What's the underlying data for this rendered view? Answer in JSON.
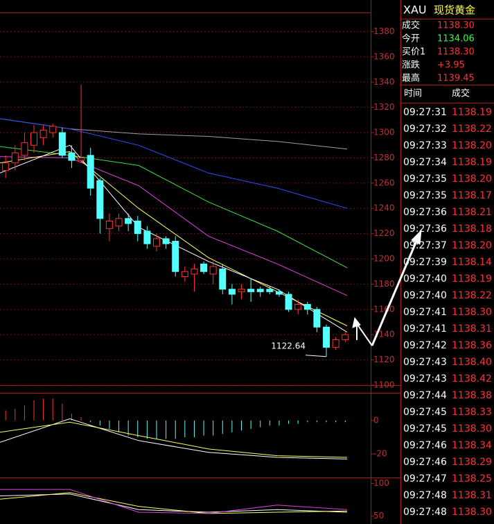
{
  "chart_data": [
    {
      "type": "candlestick",
      "xlim": [
        -0.6,
        38.7
      ],
      "ylim": [
        1100,
        1405
      ],
      "yticks": [
        1100,
        1120,
        1140,
        1160,
        1180,
        1200,
        1220,
        1240,
        1260,
        1280,
        1300,
        1320,
        1340,
        1360,
        1380
      ],
      "up_color": "#ff3232",
      "down_color": "#54ffff",
      "grid": true,
      "open": [
        1270,
        1276,
        1282,
        1290,
        1296,
        1300,
        1300,
        1284,
        1278,
        1282,
        1262,
        1224,
        1226,
        1232,
        1230,
        1222,
        1210,
        1216,
        1214,
        1186,
        1188,
        1196,
        1188,
        1192,
        1176,
        1174,
        1176,
        1176,
        1176,
        1174,
        1172,
        1160,
        1164,
        1160,
        1146,
        1130,
        1136
      ],
      "high": [
        1282,
        1290,
        1300,
        1306,
        1306,
        1307,
        1304,
        1290,
        1338,
        1288,
        1264,
        1236,
        1236,
        1236,
        1234,
        1226,
        1220,
        1218,
        1218,
        1194,
        1196,
        1198,
        1198,
        1196,
        1180,
        1180,
        1184,
        1178,
        1178,
        1176,
        1174,
        1168,
        1166,
        1162,
        1148,
        1138,
        1142
      ],
      "low": [
        1264,
        1270,
        1278,
        1284,
        1290,
        1296,
        1280,
        1272,
        1276,
        1250,
        1220,
        1214,
        1222,
        1222,
        1214,
        1208,
        1206,
        1208,
        1186,
        1182,
        1174,
        1188,
        1180,
        1172,
        1164,
        1168,
        1166,
        1170,
        1172,
        1170,
        1158,
        1156,
        1156,
        1142,
        1122.64,
        1128,
        1134
      ],
      "close": [
        1276,
        1284,
        1292,
        1300,
        1302,
        1305,
        1282,
        1278,
        1280,
        1256,
        1232,
        1230,
        1232,
        1228,
        1220,
        1212,
        1216,
        1212,
        1190,
        1190,
        1192,
        1190,
        1194,
        1176,
        1172,
        1176,
        1174,
        1174,
        1174,
        1172,
        1160,
        1164,
        1160,
        1146,
        1130,
        1136,
        1140
      ],
      "annotation": "1122.64",
      "lines": {
        "x": [
          -0.6,
          6.8,
          14.1,
          21.5,
          28.8,
          36.2
        ],
        "series": [
          {
            "color": "#a0a0a0",
            "values": [
              1311,
              1303,
              1299,
              1297,
              1293,
              1287
            ]
          },
          {
            "color": "#3050ff",
            "values": [
              1311,
              1303,
              1290,
              1268,
              1256,
              1240
            ]
          },
          {
            "color": "#40e040",
            "values": [
              1289,
              1282,
              1274,
              1245,
              1222,
              1193
            ]
          },
          {
            "color": "#e040e0",
            "values": [
              1281,
              1280,
              1258,
              1218,
              1196,
              1171
            ]
          },
          {
            "color": "#ffff60",
            "values": [
              1276,
              1285,
              1240,
              1201,
              1174,
              1147
            ]
          },
          {
            "color": "#ffffff",
            "values": [
              1268,
              1290,
              1225,
              1198,
              1176,
              1142
            ]
          }
        ]
      }
    },
    {
      "type": "bar",
      "xlim": [
        -0.6,
        38.7
      ],
      "ylim": [
        -34,
        14
      ],
      "yticks": [
        -20,
        0
      ],
      "pos_color": "#ff3232",
      "neg_color": "#54ffff",
      "values": [
        6,
        7,
        9,
        12,
        13,
        13,
        10,
        4,
        2,
        -1,
        -3,
        -5,
        -7,
        -9,
        -10,
        -11,
        -11,
        -11,
        -11,
        -10,
        -10,
        -9,
        -9,
        -8,
        -7,
        -6,
        -5,
        -4,
        -3,
        -3,
        -2,
        -2,
        -1,
        -1,
        -1,
        -1,
        -1
      ],
      "lines": {
        "x": [
          -0.6,
          6.8,
          14.1,
          21.5,
          28.8,
          36.2
        ],
        "series": [
          {
            "color": "#ffffff",
            "values": [
              -13,
              1,
              -12,
              -19,
              -22,
              -23
            ]
          },
          {
            "color": "#ffff60",
            "values": [
              -7,
              -1,
              -9,
              -17,
              -21,
              -22
            ]
          }
        ]
      }
    },
    {
      "type": "line",
      "xlim": [
        -0.6,
        38.7
      ],
      "ylim": [
        38,
        107
      ],
      "yticks": [
        50,
        100
      ],
      "lines": {
        "x": [
          -0.6,
          6.8,
          14.1,
          21.5,
          28.8,
          36.2
        ],
        "series": [
          {
            "color": "#ffffff",
            "values": [
              81,
              84,
              60,
              56,
              60,
              56
            ]
          },
          {
            "color": "#ffff60",
            "values": [
              76,
              86,
              65,
              54,
              56,
              58
            ]
          },
          {
            "color": "#e040e0",
            "values": [
              91,
              91,
              56,
              54,
              67,
              60
            ]
          }
        ]
      }
    }
  ],
  "quote": {
    "symbol": "XAU",
    "name": "现货黄金",
    "rows": [
      {
        "label": "成交",
        "value": "1138.30",
        "color": "#ff3232"
      },
      {
        "label": "今开",
        "value": "1134.06",
        "color": "#30ff30"
      },
      {
        "label": "买价1",
        "value": "1138.30",
        "color": "#ff3232"
      },
      {
        "label": "涨跌",
        "value": "+3.95",
        "color": "#ff3232"
      },
      {
        "label": "最高",
        "value": "1139.45",
        "color": "#ff3232"
      }
    ]
  },
  "ticks": {
    "headers": [
      "时间",
      "成交"
    ],
    "rows": [
      [
        "09:27:31",
        "1138.19"
      ],
      [
        "09:27:32",
        "1138.22"
      ],
      [
        "09:27:33",
        "1138.20"
      ],
      [
        "09:27:34",
        "1138.19"
      ],
      [
        "09:27:35",
        "1138.20"
      ],
      [
        "09:27:35",
        "1138.17"
      ],
      [
        "09:27:36",
        "1138.21"
      ],
      [
        "09:27:36",
        "1138.18"
      ],
      [
        "09:27:37",
        "1138.20"
      ],
      [
        "09:27:39",
        "1138.14"
      ],
      [
        "09:27:40",
        "1138.19"
      ],
      [
        "09:27:40",
        "1138.22"
      ],
      [
        "09:27:41",
        "1138.30"
      ],
      [
        "09:27:41",
        "1138.31"
      ],
      [
        "09:27:42",
        "1138.36"
      ],
      [
        "09:27:43",
        "1138.40"
      ],
      [
        "09:27:43",
        "1138.42"
      ],
      [
        "09:27:44",
        "1138.38"
      ],
      [
        "09:27:45",
        "1138.33"
      ],
      [
        "09:27:45",
        "1138.30"
      ],
      [
        "09:27:46",
        "1138.34"
      ],
      [
        "09:27:46",
        "1138.29"
      ],
      [
        "09:27:47",
        "1138.25"
      ],
      [
        "09:27:48",
        "1138.31"
      ],
      [
        "09:27:48",
        "1138.30"
      ]
    ]
  }
}
